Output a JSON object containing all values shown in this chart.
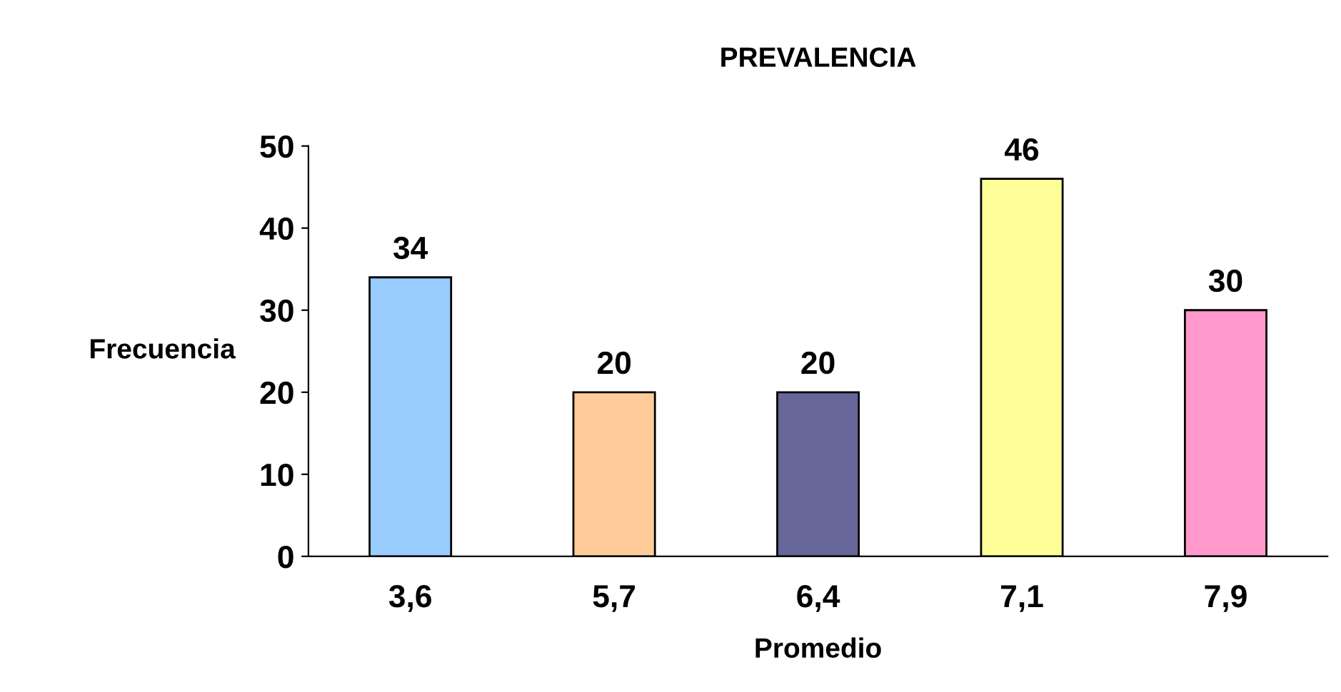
{
  "chart_data": {
    "type": "bar",
    "title": "PREVALENCIA",
    "xlabel": "Promedio",
    "ylabel": "Frecuencia",
    "categories": [
      "3,6",
      "5,7",
      "6,4",
      "7,1",
      "7,9"
    ],
    "values": [
      34,
      20,
      20,
      46,
      30
    ],
    "colors": [
      "#99ccff",
      "#ffcc99",
      "#666699",
      "#ffff99",
      "#ff99cc"
    ],
    "ylim": [
      0,
      50
    ],
    "yticks": [
      0,
      10,
      20,
      30,
      40,
      50
    ],
    "data_labels": true,
    "grid": false,
    "legend": false
  }
}
